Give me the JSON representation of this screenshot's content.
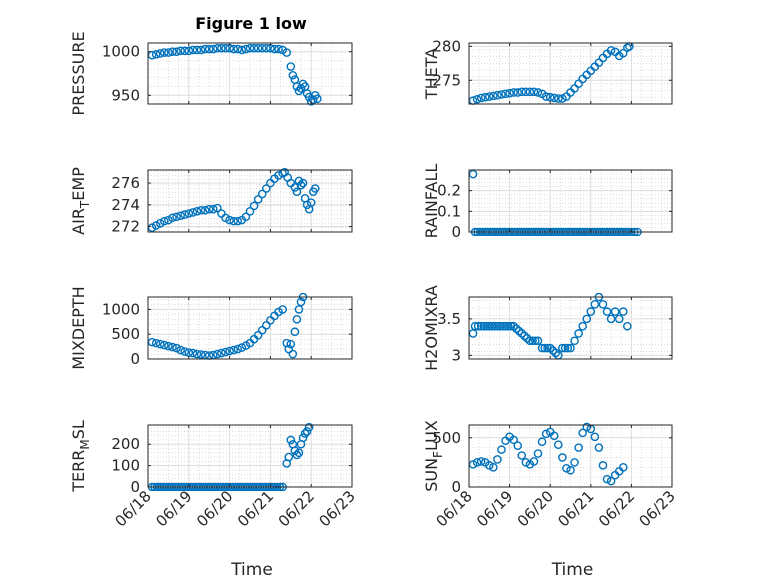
{
  "figure": {
    "title": "Figure 1 low",
    "series_color": "#0072bd"
  },
  "chart_data": [
    {
      "type": "scatter",
      "ylabel": "PRESSURE",
      "xlabel": "",
      "xlim": [
        0,
        5
      ],
      "ylim": [
        940,
        1010
      ],
      "yticks": [
        950,
        1000
      ],
      "xticks": [
        0,
        1,
        2,
        3,
        4,
        5
      ],
      "xticklabels": [],
      "grid": true,
      "points": [
        [
          0.1,
          996
        ],
        [
          0.2,
          997
        ],
        [
          0.3,
          998
        ],
        [
          0.4,
          999
        ],
        [
          0.5,
          999
        ],
        [
          0.6,
          1000
        ],
        [
          0.7,
          1000
        ],
        [
          0.8,
          1001
        ],
        [
          0.9,
          1001
        ],
        [
          1.0,
          1001
        ],
        [
          1.1,
          1002
        ],
        [
          1.2,
          1002
        ],
        [
          1.3,
          1002
        ],
        [
          1.4,
          1003
        ],
        [
          1.5,
          1003
        ],
        [
          1.6,
          1003
        ],
        [
          1.7,
          1004
        ],
        [
          1.8,
          1004
        ],
        [
          1.9,
          1004
        ],
        [
          2.0,
          1004
        ],
        [
          2.1,
          1003
        ],
        [
          2.2,
          1003
        ],
        [
          2.3,
          1002
        ],
        [
          2.4,
          1003
        ],
        [
          2.5,
          1004
        ],
        [
          2.6,
          1004
        ],
        [
          2.7,
          1004
        ],
        [
          2.8,
          1004
        ],
        [
          2.9,
          1004
        ],
        [
          3.0,
          1004
        ],
        [
          3.1,
          1003
        ],
        [
          3.2,
          1003
        ],
        [
          3.3,
          1002
        ],
        [
          3.4,
          999
        ],
        [
          3.5,
          983
        ],
        [
          3.55,
          973
        ],
        [
          3.6,
          968
        ],
        [
          3.65,
          960
        ],
        [
          3.7,
          955
        ],
        [
          3.75,
          958
        ],
        [
          3.8,
          963
        ],
        [
          3.85,
          960
        ],
        [
          3.9,
          952
        ],
        [
          3.95,
          948
        ],
        [
          4.0,
          943
        ],
        [
          4.05,
          945
        ],
        [
          4.1,
          950
        ],
        [
          4.15,
          946
        ]
      ]
    },
    {
      "type": "scatter",
      "ylabel": "THETA",
      "xlabel": "",
      "xlim": [
        0,
        5
      ],
      "ylim": [
        271.5,
        280.5
      ],
      "yticks": [
        275,
        280
      ],
      "xticks": [
        0,
        1,
        2,
        3,
        4,
        5
      ],
      "xticklabels": [],
      "grid": true,
      "points": [
        [
          0.1,
          272.0
        ],
        [
          0.2,
          272.2
        ],
        [
          0.3,
          272.4
        ],
        [
          0.4,
          272.5
        ],
        [
          0.5,
          272.6
        ],
        [
          0.6,
          272.7
        ],
        [
          0.7,
          272.8
        ],
        [
          0.8,
          272.9
        ],
        [
          0.9,
          273.0
        ],
        [
          1.0,
          273.1
        ],
        [
          1.1,
          273.2
        ],
        [
          1.2,
          273.2
        ],
        [
          1.3,
          273.3
        ],
        [
          1.4,
          273.3
        ],
        [
          1.5,
          273.3
        ],
        [
          1.6,
          273.3
        ],
        [
          1.7,
          273.2
        ],
        [
          1.8,
          273.0
        ],
        [
          1.9,
          272.6
        ],
        [
          2.0,
          272.5
        ],
        [
          2.1,
          272.4
        ],
        [
          2.2,
          272.3
        ],
        [
          2.3,
          272.3
        ],
        [
          2.4,
          272.6
        ],
        [
          2.5,
          273.2
        ],
        [
          2.6,
          273.8
        ],
        [
          2.7,
          274.5
        ],
        [
          2.8,
          275.2
        ],
        [
          2.9,
          275.8
        ],
        [
          3.0,
          276.4
        ],
        [
          3.1,
          277.0
        ],
        [
          3.2,
          277.6
        ],
        [
          3.3,
          278.3
        ],
        [
          3.4,
          278.9
        ],
        [
          3.5,
          279.4
        ],
        [
          3.6,
          279.2
        ],
        [
          3.7,
          278.6
        ],
        [
          3.8,
          279.0
        ],
        [
          3.9,
          279.8
        ],
        [
          3.95,
          280.0
        ]
      ]
    },
    {
      "type": "scatter",
      "ylabel": "AIR_TEMP",
      "xlabel": "",
      "xlim": [
        0,
        5
      ],
      "ylim": [
        271.5,
        277.2
      ],
      "yticks": [
        272,
        274,
        276
      ],
      "xticks": [
        0,
        1,
        2,
        3,
        4,
        5
      ],
      "xticklabels": [],
      "grid": true,
      "points": [
        [
          0.1,
          271.9
        ],
        [
          0.2,
          272.1
        ],
        [
          0.3,
          272.3
        ],
        [
          0.4,
          272.5
        ],
        [
          0.5,
          272.6
        ],
        [
          0.6,
          272.8
        ],
        [
          0.7,
          272.9
        ],
        [
          0.8,
          273.0
        ],
        [
          0.9,
          273.1
        ],
        [
          1.0,
          273.2
        ],
        [
          1.1,
          273.3
        ],
        [
          1.2,
          273.4
        ],
        [
          1.3,
          273.5
        ],
        [
          1.4,
          273.5
        ],
        [
          1.5,
          273.6
        ],
        [
          1.6,
          273.6
        ],
        [
          1.7,
          273.7
        ],
        [
          1.8,
          273.2
        ],
        [
          1.9,
          272.8
        ],
        [
          2.0,
          272.6
        ],
        [
          2.1,
          272.5
        ],
        [
          2.2,
          272.5
        ],
        [
          2.3,
          272.6
        ],
        [
          2.4,
          272.9
        ],
        [
          2.5,
          273.4
        ],
        [
          2.6,
          273.9
        ],
        [
          2.7,
          274.5
        ],
        [
          2.8,
          275.0
        ],
        [
          2.9,
          275.5
        ],
        [
          3.0,
          276.0
        ],
        [
          3.1,
          276.4
        ],
        [
          3.2,
          276.7
        ],
        [
          3.3,
          276.9
        ],
        [
          3.35,
          277.0
        ],
        [
          3.5,
          276.0
        ],
        [
          3.6,
          275.6
        ],
        [
          3.65,
          275.2
        ],
        [
          3.7,
          276.2
        ],
        [
          3.75,
          275.8
        ],
        [
          3.8,
          276.0
        ],
        [
          3.85,
          274.6
        ],
        [
          3.9,
          274.0
        ],
        [
          3.95,
          273.6
        ],
        [
          4.0,
          274.2
        ],
        [
          4.05,
          275.2
        ],
        [
          4.1,
          275.5
        ]
      ]
    },
    {
      "type": "scatter",
      "ylabel": "RAINFALL",
      "xlabel": "",
      "xlim": [
        0,
        5
      ],
      "ylim": [
        0,
        0.3
      ],
      "yticks": [
        0,
        0.1,
        0.2
      ],
      "xticks": [
        0,
        1,
        2,
        3,
        4,
        5
      ],
      "xticklabels": [],
      "grid": true,
      "points": [
        [
          0.1,
          0.28
        ],
        [
          0.15,
          0
        ],
        [
          0.4,
          0
        ],
        [
          0.7,
          0
        ],
        [
          1.0,
          0
        ],
        [
          1.3,
          0
        ],
        [
          1.6,
          0
        ],
        [
          1.9,
          0
        ],
        [
          2.2,
          0
        ],
        [
          2.5,
          0
        ],
        [
          2.8,
          0
        ],
        [
          3.1,
          0
        ],
        [
          3.4,
          0
        ],
        [
          3.7,
          0
        ],
        [
          4.0,
          0
        ],
        [
          4.15,
          0
        ]
      ]
    },
    {
      "type": "scatter",
      "ylabel": "MIXDEPTH",
      "xlabel": "",
      "xlim": [
        0,
        5
      ],
      "ylim": [
        0,
        1250
      ],
      "yticks": [
        0,
        500,
        1000
      ],
      "xticks": [
        0,
        1,
        2,
        3,
        4,
        5
      ],
      "xticklabels": [],
      "grid": true,
      "points": [
        [
          0.1,
          340
        ],
        [
          0.2,
          320
        ],
        [
          0.3,
          300
        ],
        [
          0.4,
          280
        ],
        [
          0.5,
          260
        ],
        [
          0.6,
          240
        ],
        [
          0.7,
          220
        ],
        [
          0.8,
          180
        ],
        [
          0.9,
          150
        ],
        [
          1.0,
          130
        ],
        [
          1.1,
          120
        ],
        [
          1.2,
          100
        ],
        [
          1.3,
          90
        ],
        [
          1.4,
          80
        ],
        [
          1.5,
          70
        ],
        [
          1.6,
          80
        ],
        [
          1.7,
          100
        ],
        [
          1.8,
          120
        ],
        [
          1.9,
          140
        ],
        [
          2.0,
          160
        ],
        [
          2.1,
          180
        ],
        [
          2.2,
          200
        ],
        [
          2.3,
          230
        ],
        [
          2.4,
          270
        ],
        [
          2.5,
          320
        ],
        [
          2.6,
          400
        ],
        [
          2.7,
          480
        ],
        [
          2.8,
          580
        ],
        [
          2.9,
          680
        ],
        [
          3.0,
          780
        ],
        [
          3.1,
          870
        ],
        [
          3.2,
          950
        ],
        [
          3.3,
          1000
        ],
        [
          3.4,
          320
        ],
        [
          3.45,
          200
        ],
        [
          3.5,
          300
        ],
        [
          3.55,
          100
        ],
        [
          3.6,
          550
        ],
        [
          3.65,
          800
        ],
        [
          3.7,
          1000
        ],
        [
          3.75,
          1150
        ],
        [
          3.8,
          1250
        ]
      ]
    },
    {
      "type": "scatter",
      "ylabel": "H2OMIXRA",
      "xlabel": "",
      "xlim": [
        0,
        5
      ],
      "ylim": [
        2.95,
        3.8
      ],
      "yticks": [
        3,
        3.5
      ],
      "xticks": [
        0,
        1,
        2,
        3,
        4,
        5
      ],
      "xticklabels": [],
      "grid": true,
      "points": [
        [
          0.1,
          3.3
        ],
        [
          0.15,
          3.4
        ],
        [
          0.3,
          3.4
        ],
        [
          0.5,
          3.4
        ],
        [
          0.7,
          3.4
        ],
        [
          0.9,
          3.4
        ],
        [
          1.1,
          3.4
        ],
        [
          1.3,
          3.3
        ],
        [
          1.5,
          3.2
        ],
        [
          1.7,
          3.2
        ],
        [
          1.8,
          3.1
        ],
        [
          2.0,
          3.1
        ],
        [
          2.2,
          3.0
        ],
        [
          2.3,
          3.1
        ],
        [
          2.5,
          3.1
        ],
        [
          2.6,
          3.2
        ],
        [
          2.7,
          3.3
        ],
        [
          2.8,
          3.4
        ],
        [
          2.9,
          3.5
        ],
        [
          3.0,
          3.6
        ],
        [
          3.1,
          3.7
        ],
        [
          3.2,
          3.8
        ],
        [
          3.3,
          3.7
        ],
        [
          3.4,
          3.6
        ],
        [
          3.5,
          3.5
        ],
        [
          3.6,
          3.6
        ],
        [
          3.7,
          3.5
        ],
        [
          3.8,
          3.6
        ],
        [
          3.9,
          3.4
        ]
      ]
    },
    {
      "type": "scatter",
      "ylabel": "TERR_MSL",
      "xlabel": "Time",
      "xlim": [
        0,
        5
      ],
      "ylim": [
        0,
        290
      ],
      "yticks": [
        0,
        100,
        200
      ],
      "xticks": [
        0,
        1,
        2,
        3,
        4,
        5
      ],
      "xticklabels": [
        "06/18",
        "06/19",
        "06/20",
        "06/21",
        "06/22",
        "06/23"
      ],
      "grid": true,
      "points": [
        [
          0.1,
          0
        ],
        [
          0.4,
          0
        ],
        [
          0.7,
          0
        ],
        [
          1.0,
          0
        ],
        [
          1.3,
          0
        ],
        [
          1.6,
          0
        ],
        [
          1.9,
          0
        ],
        [
          2.2,
          0
        ],
        [
          2.5,
          0
        ],
        [
          2.8,
          0
        ],
        [
          3.1,
          0
        ],
        [
          3.3,
          0
        ],
        [
          3.4,
          110
        ],
        [
          3.45,
          140
        ],
        [
          3.5,
          220
        ],
        [
          3.55,
          200
        ],
        [
          3.6,
          170
        ],
        [
          3.65,
          150
        ],
        [
          3.7,
          160
        ],
        [
          3.75,
          200
        ],
        [
          3.8,
          230
        ],
        [
          3.85,
          250
        ],
        [
          3.9,
          260
        ],
        [
          3.95,
          280
        ]
      ]
    },
    {
      "type": "scatter",
      "ylabel": "SUN_FLUX",
      "xlabel": "Time",
      "xlim": [
        0,
        5
      ],
      "ylim": [
        0,
        630
      ],
      "yticks": [
        0,
        500
      ],
      "xticks": [
        0,
        1,
        2,
        3,
        4,
        5
      ],
      "xticklabels": [
        "06/18",
        "06/19",
        "06/20",
        "06/21",
        "06/22",
        "06/23"
      ],
      "grid": true,
      "points": [
        [
          0.1,
          230
        ],
        [
          0.2,
          250
        ],
        [
          0.3,
          260
        ],
        [
          0.4,
          250
        ],
        [
          0.5,
          220
        ],
        [
          0.6,
          200
        ],
        [
          0.7,
          280
        ],
        [
          0.8,
          380
        ],
        [
          0.9,
          470
        ],
        [
          1.0,
          510
        ],
        [
          1.1,
          480
        ],
        [
          1.2,
          420
        ],
        [
          1.3,
          320
        ],
        [
          1.4,
          250
        ],
        [
          1.5,
          230
        ],
        [
          1.6,
          260
        ],
        [
          1.7,
          340
        ],
        [
          1.8,
          460
        ],
        [
          1.9,
          540
        ],
        [
          2.0,
          560
        ],
        [
          2.1,
          520
        ],
        [
          2.2,
          430
        ],
        [
          2.3,
          300
        ],
        [
          2.4,
          190
        ],
        [
          2.5,
          170
        ],
        [
          2.6,
          250
        ],
        [
          2.7,
          400
        ],
        [
          2.8,
          550
        ],
        [
          2.9,
          610
        ],
        [
          3.0,
          590
        ],
        [
          3.1,
          510
        ],
        [
          3.2,
          400
        ],
        [
          3.3,
          220
        ],
        [
          3.4,
          80
        ],
        [
          3.5,
          60
        ],
        [
          3.6,
          120
        ],
        [
          3.7,
          160
        ],
        [
          3.8,
          200
        ]
      ]
    }
  ]
}
